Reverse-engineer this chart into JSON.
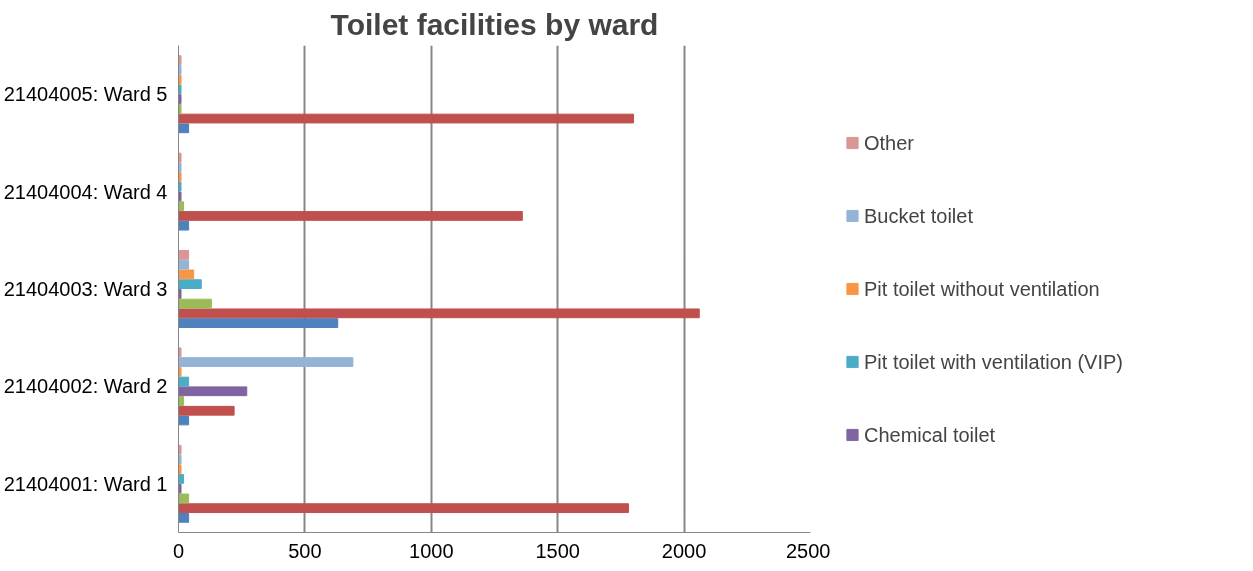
{
  "chart_data": {
    "type": "bar",
    "orientation": "horizontal",
    "title": "Toilet facilities by ward",
    "categories": [
      "21404005: Ward 5",
      "21404004: Ward 4",
      "21404003: Ward 3",
      "21404002: Ward 2",
      "21404001: Ward 1"
    ],
    "series": [
      {
        "color": "#4f81bd",
        "values": [
          40,
          40,
          630,
          40,
          40
        ]
      },
      {
        "color": "#c0504d",
        "values": [
          1800,
          1360,
          2060,
          220,
          1780
        ]
      },
      {
        "color": "#9bbb59",
        "values": [
          10,
          20,
          130,
          20,
          40
        ]
      },
      {
        "name": "Chemical toilet",
        "color": "#8064a2",
        "values": [
          10,
          10,
          10,
          270,
          10
        ]
      },
      {
        "name": "Pit toilet with ventilation (VIP)",
        "color": "#4bacc6",
        "values": [
          10,
          10,
          90,
          40,
          20
        ]
      },
      {
        "name": "Pit toilet without ventilation",
        "color": "#f79646",
        "values": [
          10,
          10,
          60,
          10,
          10
        ]
      },
      {
        "name": "Bucket toilet",
        "color": "#95b3d7",
        "values": [
          10,
          10,
          40,
          690,
          10
        ]
      },
      {
        "name": "Other",
        "color": "#d99694",
        "values": [
          10,
          10,
          40,
          10,
          10
        ]
      }
    ],
    "xlim": [
      0,
      2500
    ],
    "xticks": [
      0,
      500,
      1000,
      1500,
      2000,
      2500
    ],
    "grid": "x",
    "legend": "right"
  }
}
